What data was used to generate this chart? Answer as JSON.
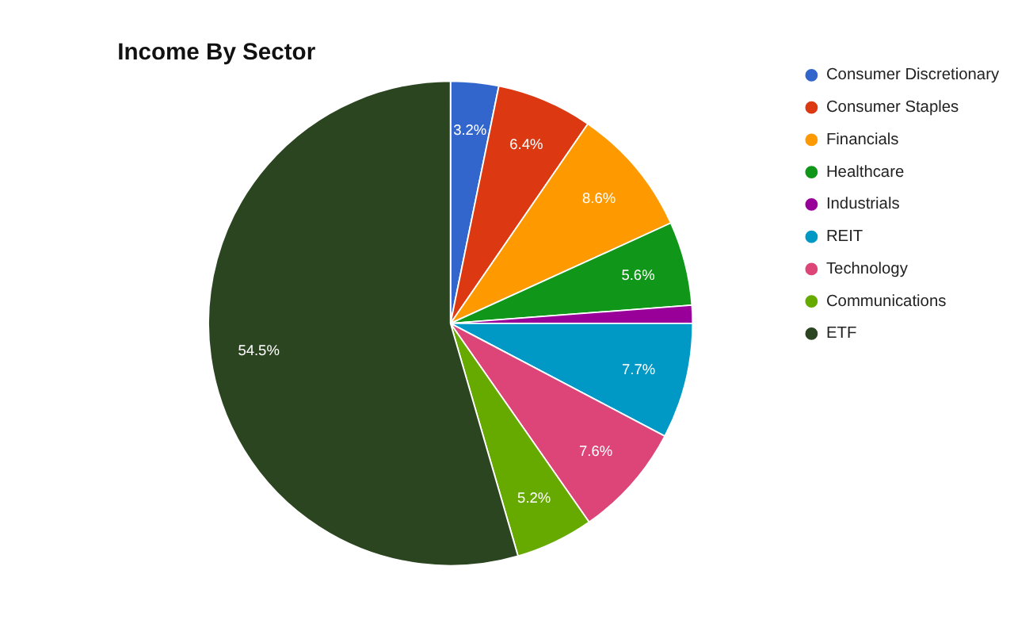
{
  "chart_data": {
    "type": "pie",
    "title": "Income By Sector",
    "categories": [
      "Consumer Discretionary",
      "Consumer Staples",
      "Financials",
      "Healthcare",
      "Industrials",
      "REIT",
      "Technology",
      "Communications",
      "ETF"
    ],
    "values": [
      3.2,
      6.4,
      8.6,
      5.6,
      1.2,
      7.7,
      7.6,
      5.2,
      54.5
    ],
    "value_labels": [
      "3.2%",
      "6.4%",
      "8.6%",
      "5.6%",
      null,
      "7.7%",
      "7.6%",
      "5.2%",
      "54.5%"
    ],
    "colors": [
      "#3366cc",
      "#dc3912",
      "#ff9900",
      "#109618",
      "#990099",
      "#0099c6",
      "#dd4477",
      "#66aa00",
      "#2c4521"
    ],
    "legend": "top right"
  }
}
